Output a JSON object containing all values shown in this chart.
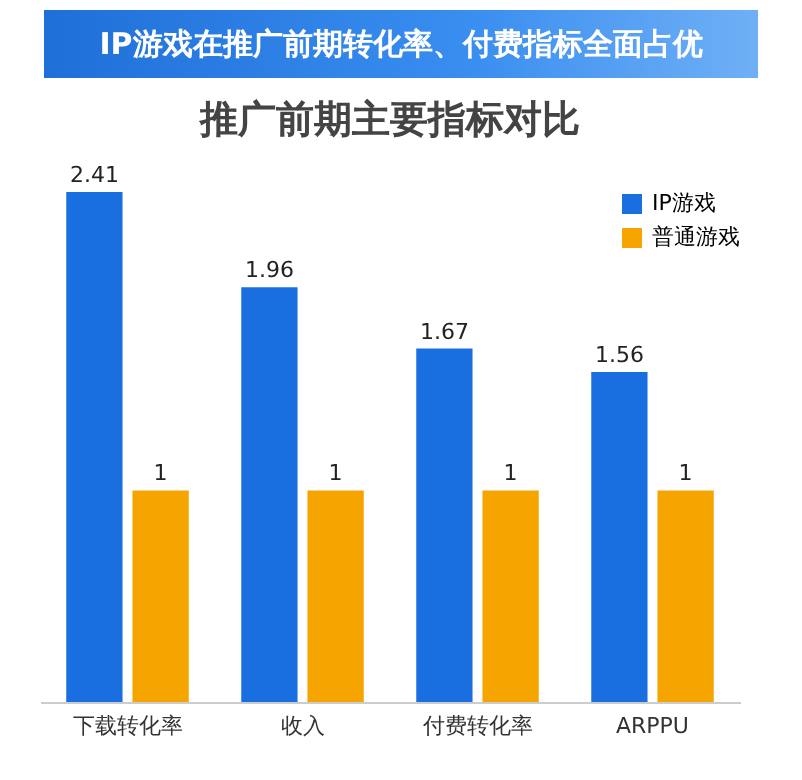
{
  "chart_data": {
    "type": "bar",
    "title": "IP游戏在推广前期转化率、付费指标全面占优",
    "subtitle": "推广前期主要指标对比",
    "categories": [
      "下载转化率",
      "收入",
      "付费转化率",
      "ARPPU"
    ],
    "series": [
      {
        "name": "IP游戏",
        "color": "#1a6fe0",
        "values": [
          2.41,
          1.96,
          1.67,
          1.56
        ]
      },
      {
        "name": "普通游戏",
        "color": "#f5a400",
        "values": [
          1,
          1,
          1,
          1
        ]
      }
    ],
    "data_labels": true,
    "legend": "top right"
  }
}
